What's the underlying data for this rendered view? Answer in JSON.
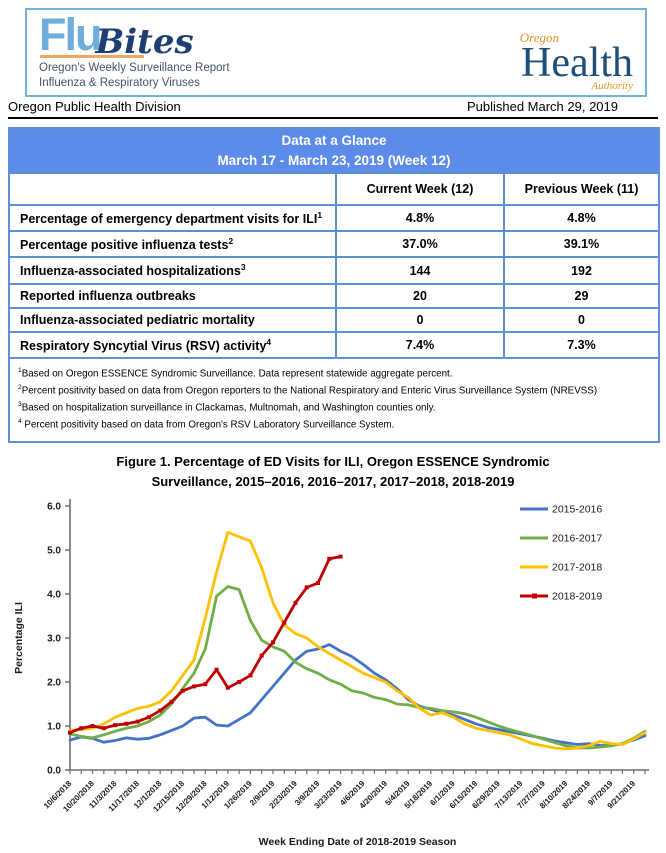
{
  "header": {
    "logo": {
      "flu": "Flu",
      "bites": "Bites",
      "tagline1": "Oregon's Weekly Surveillance Report",
      "tagline2": "Influenza & Respiratory Viruses"
    },
    "oha": {
      "oregon": "Oregon",
      "health": "Health",
      "authority": "Authority"
    },
    "division": "Oregon Public Health Division",
    "published": "Published March 29, 2019"
  },
  "glance": {
    "title_line1": "Data at a Glance",
    "title_line2": "March 17 - March 23, 2019 (Week 12)",
    "columns": [
      "Current Week (12)",
      "Previous Week (11)"
    ],
    "rows": [
      {
        "label": "Percentage of emergency department visits for ILI",
        "sup": "1",
        "current": "4.8%",
        "previous": "4.8%"
      },
      {
        "label": "Percentage positive influenza tests",
        "sup": "2",
        "current": "37.0%",
        "previous": "39.1%"
      },
      {
        "label": "Influenza-associated hospitalizations",
        "sup": "3",
        "current": "144",
        "previous": "192"
      },
      {
        "label": "Reported influenza outbreaks",
        "sup": "",
        "current": "20",
        "previous": "29"
      },
      {
        "label": "Influenza-associated pediatric mortality",
        "sup": "",
        "current": "0",
        "previous": "0"
      },
      {
        "label": "Respiratory Syncytial Virus (RSV) activity",
        "sup": "4",
        "current": "7.4%",
        "previous": "7.3%"
      }
    ],
    "footnotes": [
      {
        "sup": "1",
        "text": "Based on Oregon ESSENCE Syndromic Surveillance. Data represent statewide aggregate percent."
      },
      {
        "sup": "2",
        "text": "Percent positivity based on data from Oregon reporters to the National Respiratory and Enteric Virus Surveillance System (NREVSS)"
      },
      {
        "sup": "3",
        "text": "Based on hospitalization surveillance in Clackamas, Multnomah, and Washington counties only."
      },
      {
        "sup": "4",
        "text": " Percent positivity based on data from Oregon's RSV Laboratory Surveillance System."
      }
    ]
  },
  "figure": {
    "title_line1": "Figure 1. Percentage of ED Visits for ILI, Oregon ESSENCE Syndromic",
    "title_line2": "Surveillance, 2015–2016, 2016–2017, 2017–2018, 2018-2019"
  },
  "chart_data": {
    "type": "line",
    "title": "Figure 1. Percentage of ED Visits for ILI, Oregon ESSENCE Syndromic Surveillance, 2015–2016, 2016–2017, 2017–2018, 2018-2019",
    "xlabel": "Week Ending Date of 2018-2019 Season",
    "ylabel": "Percentage ILI",
    "ylim": [
      0,
      6
    ],
    "ytick_labels": [
      "0.0",
      "1.0",
      "2.0",
      "3.0",
      "4.0",
      "5.0",
      "6.0"
    ],
    "grid": false,
    "legend_position": "top-right",
    "categories": [
      "10/6/2018",
      "10/13/2018",
      "10/20/2018",
      "10/27/2018",
      "11/3/2018",
      "11/10/2018",
      "11/17/2018",
      "11/24/2018",
      "12/1/2018",
      "12/8/2018",
      "12/15/2018",
      "12/22/2018",
      "12/29/2018",
      "1/5/2019",
      "1/12/2019",
      "1/19/2019",
      "1/26/2019",
      "2/2/2019",
      "2/9/2019",
      "2/16/2019",
      "2/23/2019",
      "3/2/2019",
      "3/9/2019",
      "3/16/2019",
      "3/23/2019",
      "3/30/2019",
      "4/6/2019",
      "4/13/2019",
      "4/20/2019",
      "4/27/2019",
      "5/4/2019",
      "5/11/2019",
      "5/18/2019",
      "5/25/2019",
      "6/1/2019",
      "6/8/2019",
      "6/15/2019",
      "6/22/2019",
      "6/29/2019",
      "7/6/2019",
      "7/13/2019",
      "7/20/2019",
      "7/27/2019",
      "8/3/2019",
      "8/10/2019",
      "8/17/2019",
      "8/24/2019",
      "8/31/2019",
      "9/7/2019",
      "9/14/2019",
      "9/21/2019",
      "9/28/2019"
    ],
    "x_labels_shown": [
      "10/6/2018",
      "10/20/2018",
      "11/3/2018",
      "11/17/2018",
      "12/1/2018",
      "12/15/2018",
      "12/29/2018",
      "1/12/2019",
      "1/26/2019",
      "2/9/2019",
      "2/23/2019",
      "3/9/2019",
      "3/23/2019",
      "4/6/2019",
      "4/20/2019",
      "5/4/2019",
      "5/18/2019",
      "6/1/2019",
      "6/15/2019",
      "6/29/2019",
      "7/13/2019",
      "7/27/2019",
      "8/10/2019",
      "8/24/2019",
      "9/7/2019",
      "9/21/2019"
    ],
    "series": [
      {
        "name": "2015-2016",
        "color": "#4472C4",
        "marker": "none",
        "values": [
          0.68,
          0.75,
          0.72,
          0.63,
          0.67,
          0.73,
          0.7,
          0.72,
          0.8,
          0.9,
          1.0,
          1.18,
          1.2,
          1.02,
          1.0,
          1.15,
          1.3,
          1.6,
          1.9,
          2.2,
          2.5,
          2.7,
          2.75,
          2.85,
          2.7,
          2.58,
          2.4,
          2.2,
          2.05,
          1.85,
          1.6,
          1.45,
          1.38,
          1.3,
          1.25,
          1.15,
          1.05,
          0.97,
          0.92,
          0.87,
          0.82,
          0.77,
          0.72,
          0.66,
          0.62,
          0.58,
          0.6,
          0.56,
          0.55,
          0.6,
          0.68,
          0.78
        ]
      },
      {
        "name": "2016-2017",
        "color": "#70AD47",
        "marker": "none",
        "values": [
          0.82,
          0.76,
          0.73,
          0.8,
          0.88,
          0.95,
          1.0,
          1.1,
          1.25,
          1.5,
          1.85,
          2.2,
          2.75,
          3.95,
          4.17,
          4.1,
          3.4,
          2.95,
          2.8,
          2.7,
          2.45,
          2.3,
          2.2,
          2.05,
          1.95,
          1.8,
          1.75,
          1.65,
          1.6,
          1.5,
          1.48,
          1.42,
          1.4,
          1.35,
          1.32,
          1.28,
          1.2,
          1.1,
          1.0,
          0.92,
          0.85,
          0.78,
          0.7,
          0.62,
          0.55,
          0.5,
          0.5,
          0.52,
          0.55,
          0.6,
          0.72,
          0.88
        ]
      },
      {
        "name": "2017-2018",
        "color": "#FFC000",
        "marker": "none",
        "values": [
          0.9,
          0.92,
          0.95,
          1.05,
          1.2,
          1.3,
          1.4,
          1.45,
          1.55,
          1.8,
          2.15,
          2.5,
          3.45,
          4.5,
          5.4,
          5.3,
          5.2,
          4.6,
          3.8,
          3.3,
          3.1,
          3.0,
          2.8,
          2.65,
          2.5,
          2.35,
          2.2,
          2.1,
          2.0,
          1.8,
          1.65,
          1.4,
          1.25,
          1.3,
          1.2,
          1.05,
          0.95,
          0.9,
          0.85,
          0.8,
          0.7,
          0.6,
          0.55,
          0.5,
          0.48,
          0.5,
          0.55,
          0.65,
          0.6,
          0.58,
          0.7,
          0.85
        ]
      },
      {
        "name": "2018-2019",
        "color": "#C00000",
        "marker": "square",
        "values": [
          0.85,
          0.95,
          1.0,
          0.95,
          1.02,
          1.05,
          1.1,
          1.2,
          1.35,
          1.55,
          1.8,
          1.9,
          1.95,
          2.28,
          1.87,
          2.0,
          2.15,
          2.6,
          2.9,
          3.35,
          3.8,
          4.15,
          4.25,
          4.8,
          4.85
        ]
      }
    ]
  },
  "colors": {
    "table_header_bg": "#5C8BEA",
    "table_border": "#5E8FD8",
    "masthead_border": "#74B2DE",
    "logo_blue": "#6FAEDC",
    "logo_navy": "#1F3F73",
    "logo_orange": "#F2A65E",
    "oha_blue": "#1F4E79",
    "oha_orange": "#E49325"
  }
}
